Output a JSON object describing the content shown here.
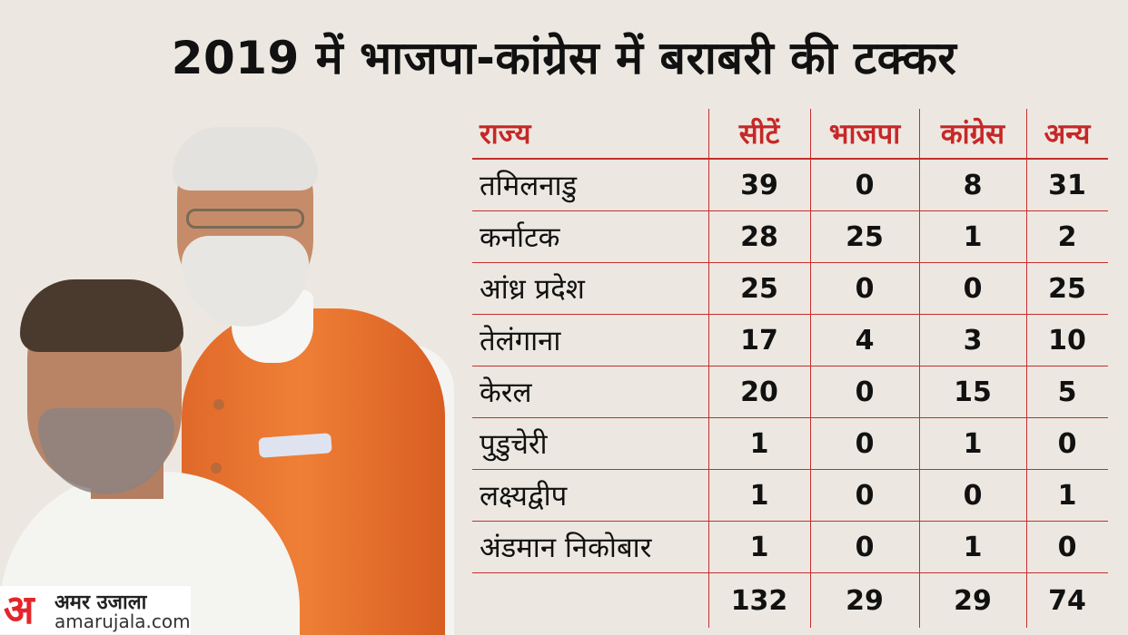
{
  "title": "2019 में भाजपा-कांग्रेस में बराबरी की टक्कर",
  "table": {
    "headers": [
      "राज्य",
      "सीटें",
      "भाजपा",
      "कांग्रेस",
      "अन्य"
    ],
    "rows": [
      [
        "तमिलनाडु",
        "39",
        "0",
        "8",
        "31"
      ],
      [
        "कर्नाटक",
        "28",
        "25",
        "1",
        "2"
      ],
      [
        "आंध्र प्रदेश",
        "25",
        "0",
        "0",
        "25"
      ],
      [
        "तेलंगाना",
        "17",
        "4",
        "3",
        "10"
      ],
      [
        "केरल",
        "20",
        "0",
        "15",
        "5"
      ],
      [
        "पुडुचेरी",
        "1",
        "0",
        "1",
        "0"
      ],
      [
        "लक्ष्यद्वीप",
        "1",
        "0",
        "0",
        "1"
      ],
      [
        "अंडमान निकोबार",
        "1",
        "0",
        "1",
        "0"
      ]
    ],
    "totals": [
      "",
      "132",
      "29",
      "29",
      "74"
    ]
  },
  "logo": {
    "mark": "अ",
    "name": "अमर उजाला",
    "url": "amarujala.com"
  },
  "colors": {
    "accent": "#c62828",
    "background": "#ece8e1",
    "logo_red": "#e3262b"
  }
}
